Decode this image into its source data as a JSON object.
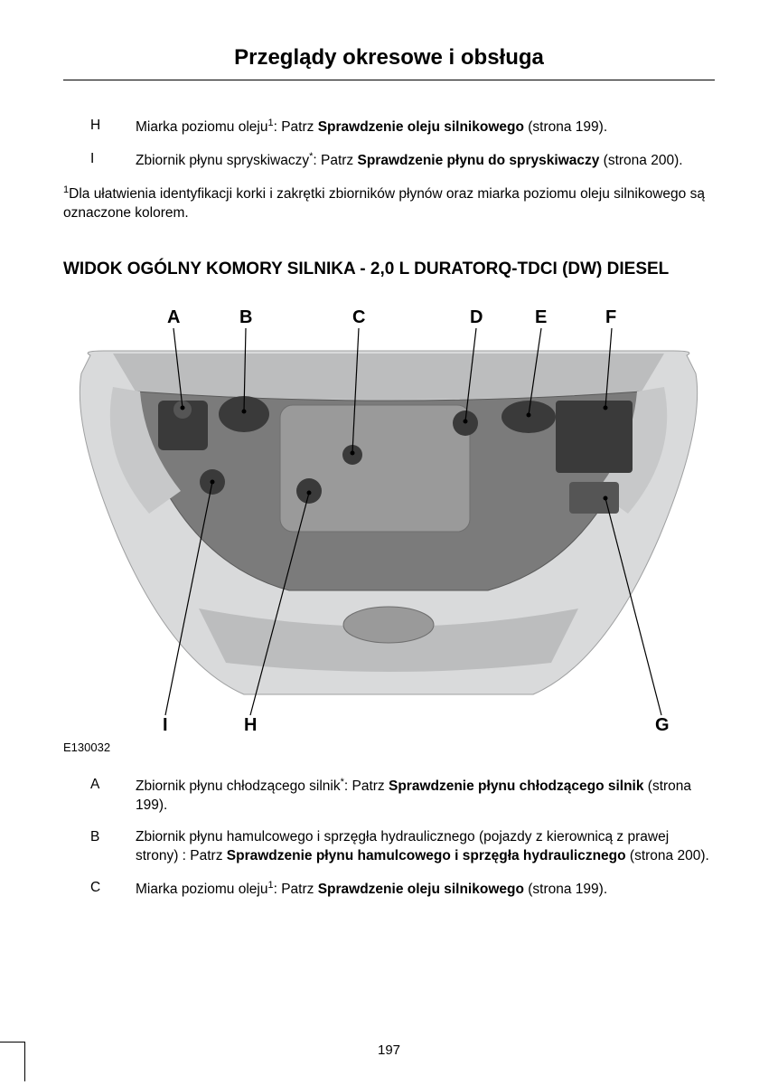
{
  "title": "Przeglądy okresowe i obsługa",
  "top_items": [
    {
      "letter": "H",
      "pre": "Miarka poziomu oleju",
      "sup": "1",
      "mid": ":  Patrz ",
      "bold": "Sprawdzenie oleju silnikowego",
      "post": " (strona 199)."
    },
    {
      "letter": "I",
      "pre": "Zbiornik płynu spryskiwaczy",
      "sup": "*",
      "mid": ":  Patrz ",
      "bold": "Sprawdzenie płynu do spryskiwaczy",
      "post": " (strona 200)."
    }
  ],
  "footnote": {
    "sup": "1",
    "text": "Dla ułatwienia identyfikacji korki i zakrętki zbiorników płynów oraz miarka poziomu oleju silnikowego są oznaczone kolorem."
  },
  "section_title": "WIDOK OGÓLNY KOMORY SILNIKA - 2,0 L DURATORQ-TDCI (DW) DIESEL",
  "diagram": {
    "image_id": "E130032",
    "labels_top": [
      "A",
      "B",
      "C",
      "D",
      "E",
      "F"
    ],
    "labels_bottom": [
      "I",
      "H",
      "G"
    ],
    "colors": {
      "body": "#d9dadb",
      "body_dark": "#bcbdbe",
      "engine_bay": "#7b7b7b",
      "engine_block": "#9a9a9a",
      "dark": "#3a3a3a",
      "leader": "#000000"
    }
  },
  "bottom_items": [
    {
      "letter": "A",
      "pre": "Zbiornik płynu chłodzącego silnik",
      "sup": "*",
      "mid": ":  Patrz ",
      "bold": "Sprawdzenie płynu chłodzącego silnik",
      "post": " (strona 199)."
    },
    {
      "letter": "B",
      "pre": "Zbiornik płynu hamulcowego i sprzęgła hydraulicznego (pojazdy z kierownicą z prawej strony) :  Patrz ",
      "sup": "",
      "mid": "",
      "bold": "Sprawdzenie płynu hamulcowego i sprzęgła hydraulicznego",
      "post": " (strona 200)."
    },
    {
      "letter": "C",
      "pre": "Miarka poziomu oleju",
      "sup": "1",
      "mid": ":  Patrz ",
      "bold": "Sprawdzenie oleju silnikowego",
      "post": " (strona 199)."
    }
  ],
  "page_number": "197"
}
